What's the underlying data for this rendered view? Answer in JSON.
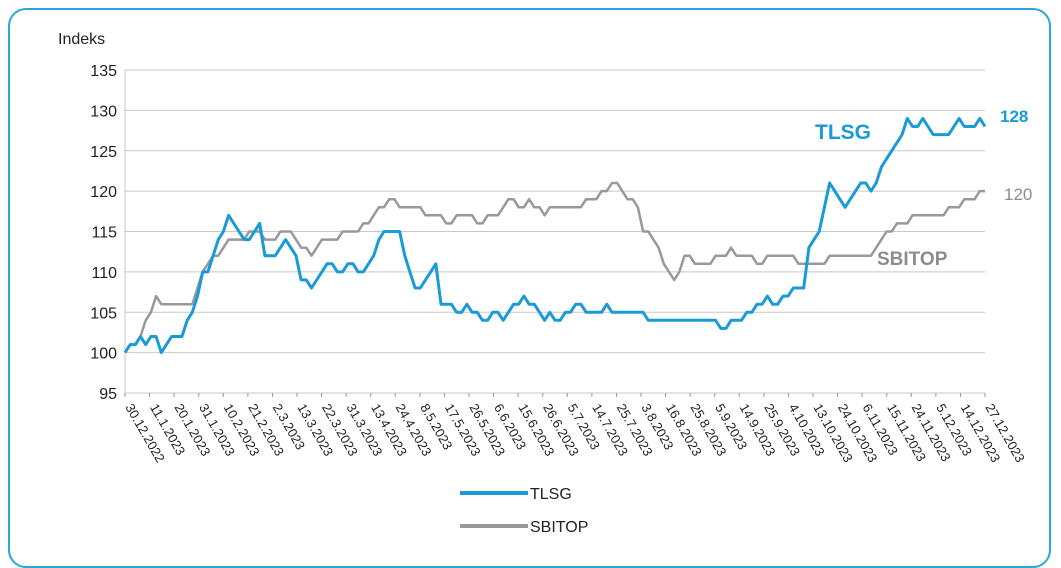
{
  "chart_data": {
    "type": "line",
    "ylabel": "Indeks",
    "ylim": [
      95,
      135
    ],
    "yticks": [
      95,
      100,
      105,
      110,
      115,
      120,
      125,
      130,
      135
    ],
    "grid": "horizontal",
    "xticks": [
      "30.12.2022",
      "11.1.2023",
      "20.1.2023",
      "31.1.2023",
      "10.2.2023",
      "21.2.2023",
      "2.3.2023",
      "13.3.2023",
      "22.3.2023",
      "31.3.2023",
      "13.4.2023",
      "24.4.2023",
      "8.5.2023",
      "17.5.2023",
      "26.5.2023",
      "6.6.2023",
      "15.6.2023",
      "26.6.2023",
      "5.7.2023",
      "14.7.2023",
      "25.7.2023",
      "3.8.2023",
      "16.8.2023",
      "25.8.2023",
      "5.9.2023",
      "14.9.2023",
      "25.9.2023",
      "4.10.2023",
      "13.10.2023",
      "24.10.2023",
      "6.11.2023",
      "15.11.2023",
      "24.11.2023",
      "5.12.2023",
      "14.12.2023",
      "27.12.2023"
    ],
    "series": [
      {
        "name": "TLSG",
        "color": "#1a9ad6",
        "end_label": "128",
        "values": [
          100,
          101,
          101,
          102,
          101,
          102,
          102,
          100,
          101,
          102,
          102,
          102,
          104,
          105,
          107,
          110,
          110,
          112,
          114,
          115,
          117,
          116,
          115,
          114,
          114,
          115,
          116,
          112,
          112,
          112,
          113,
          114,
          113,
          112,
          109,
          109,
          108,
          109,
          110,
          111,
          111,
          110,
          110,
          111,
          111,
          110,
          110,
          111,
          112,
          114,
          115,
          115,
          115,
          115,
          112,
          110,
          108,
          108,
          109,
          110,
          111,
          106,
          106,
          106,
          105,
          105,
          106,
          105,
          105,
          104,
          104,
          105,
          105,
          104,
          105,
          106,
          106,
          107,
          106,
          106,
          105,
          104,
          105,
          104,
          104,
          105,
          105,
          106,
          106,
          105,
          105,
          105,
          105,
          106,
          105,
          105,
          105,
          105,
          105,
          105,
          105,
          104,
          104,
          104,
          104,
          104,
          104,
          104,
          104,
          104,
          104,
          104,
          104,
          104,
          104,
          103,
          103,
          104,
          104,
          104,
          105,
          105,
          106,
          106,
          107,
          106,
          106,
          107,
          107,
          108,
          108,
          108,
          113,
          114,
          115,
          118,
          121,
          120,
          119,
          118,
          119,
          120,
          121,
          121,
          120,
          121,
          123,
          124,
          125,
          126,
          127,
          129,
          128,
          128,
          129,
          128,
          127,
          127,
          127,
          127,
          128,
          129,
          128,
          128,
          128,
          129,
          128
        ]
      },
      {
        "name": "SBITOP",
        "color": "#999999",
        "end_label": "120",
        "values": [
          100,
          101,
          101,
          102,
          104,
          105,
          107,
          106,
          106,
          106,
          106,
          106,
          106,
          106,
          108,
          110,
          111,
          112,
          112,
          113,
          114,
          114,
          114,
          114,
          115,
          115,
          115,
          114,
          114,
          114,
          115,
          115,
          115,
          114,
          113,
          113,
          112,
          113,
          114,
          114,
          114,
          114,
          115,
          115,
          115,
          115,
          116,
          116,
          117,
          118,
          118,
          119,
          119,
          118,
          118,
          118,
          118,
          118,
          117,
          117,
          117,
          117,
          116,
          116,
          117,
          117,
          117,
          117,
          116,
          116,
          117,
          117,
          117,
          118,
          119,
          119,
          118,
          118,
          119,
          118,
          118,
          117,
          118,
          118,
          118,
          118,
          118,
          118,
          118,
          119,
          119,
          119,
          120,
          120,
          121,
          121,
          120,
          119,
          119,
          118,
          115,
          115,
          114,
          113,
          111,
          110,
          109,
          110,
          112,
          112,
          111,
          111,
          111,
          111,
          112,
          112,
          112,
          113,
          112,
          112,
          112,
          112,
          111,
          111,
          112,
          112,
          112,
          112,
          112,
          112,
          111,
          111,
          111,
          111,
          111,
          111,
          112,
          112,
          112,
          112,
          112,
          112,
          112,
          112,
          112,
          113,
          114,
          115,
          115,
          116,
          116,
          116,
          117,
          117,
          117,
          117,
          117,
          117,
          117,
          118,
          118,
          118,
          119,
          119,
          119,
          120,
          120
        ]
      }
    ],
    "annotations": [
      {
        "text": "TLSG",
        "color": "#1a9ad6"
      },
      {
        "text": "SBITOP",
        "color": "#8c8c8c"
      }
    ]
  }
}
